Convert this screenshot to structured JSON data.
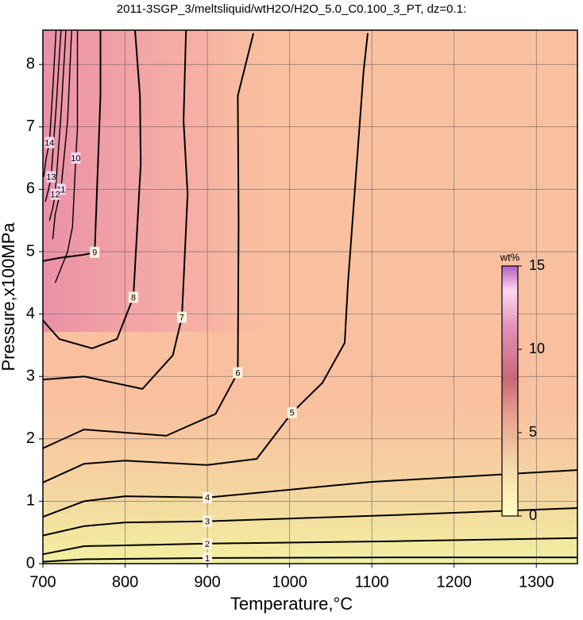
{
  "chart_data": {
    "type": "contour",
    "title": "2011-3SGP_3/meltsliquid/wtH2O/H2O_5.0_C0.100_3_PT, dz=0.1:",
    "x_label": "Temperature,°C",
    "y_label": "Pressure,x100MPa",
    "xlim": [
      700,
      1350
    ],
    "ylim": [
      0,
      8.55
    ],
    "xticks": [
      700,
      800,
      900,
      1000,
      1100,
      1200,
      1300
    ],
    "yticks": [
      0,
      1,
      2,
      3,
      4,
      5,
      6,
      7,
      8
    ],
    "grid": true,
    "line_color": "#000000",
    "series": [
      {
        "name": "1",
        "x": [
          700,
          750,
          900,
          1130,
          1350
        ],
        "values": [
          0.03,
          0.07,
          0.09,
          0.1,
          0.1
        ]
      },
      {
        "name": "2",
        "x": [
          700,
          750,
          900,
          1130,
          1350
        ],
        "values": [
          0.15,
          0.28,
          0.32,
          0.36,
          0.41
        ]
      },
      {
        "name": "3",
        "x": [
          700,
          750,
          800,
          900,
          1130,
          1350
        ],
        "values": [
          0.45,
          0.6,
          0.66,
          0.68,
          0.78,
          0.89
        ]
      },
      {
        "name": "4",
        "x": [
          700,
          750,
          800,
          900,
          1100,
          1350
        ],
        "values": [
          0.75,
          1.0,
          1.08,
          1.06,
          1.31,
          1.5
        ]
      },
      {
        "name": "5",
        "x": [
          700,
          750,
          800,
          900,
          960,
          1003,
          1040,
          1067,
          1071,
          1090,
          1095
        ],
        "values": [
          1.3,
          1.6,
          1.65,
          1.58,
          1.68,
          2.42,
          2.9,
          3.54,
          4.5,
          7.9,
          8.5
        ]
      },
      {
        "name": "6",
        "x": [
          700,
          750,
          850,
          910,
          937,
          938,
          937,
          956
        ],
        "values": [
          1.85,
          2.15,
          2.05,
          2.4,
          3.06,
          5.48,
          7.5,
          8.5
        ]
      },
      {
        "name": "7",
        "x": [
          700,
          750,
          821,
          858,
          869,
          876,
          871,
          874
        ],
        "values": [
          2.95,
          3.0,
          2.8,
          3.34,
          3.95,
          5.92,
          7.1,
          8.55
        ]
      },
      {
        "name": "8",
        "x": [
          700,
          720,
          760,
          790,
          810,
          819,
          818,
          812
        ],
        "values": [
          3.9,
          3.6,
          3.45,
          3.6,
          4.27,
          6.4,
          7.5,
          8.55
        ]
      },
      {
        "name": "9",
        "x": [
          700,
          720,
          750,
          763,
          768,
          770,
          770
        ],
        "values": [
          4.85,
          4.9,
          4.95,
          4.99,
          6.78,
          7.5,
          8.55
        ]
      },
      {
        "name": "10",
        "x": [
          715,
          730,
          736,
          740,
          742,
          742
        ],
        "values": [
          4.5,
          5.0,
          5.4,
          6.5,
          6.97,
          8.55
        ]
      },
      {
        "name": "11",
        "x": [
          712,
          715,
          722,
          730,
          735
        ],
        "values": [
          5.2,
          5.6,
          6.0,
          7.1,
          8.55
        ]
      },
      {
        "name": "12",
        "x": [
          708,
          712,
          715,
          722,
          728
        ],
        "values": [
          5.5,
          5.7,
          5.92,
          7.2,
          8.55
        ]
      },
      {
        "name": "13",
        "x": [
          703,
          707,
          710,
          716,
          722
        ],
        "values": [
          5.8,
          6.0,
          6.2,
          7.3,
          8.55
        ]
      },
      {
        "name": "14",
        "x": [
          701,
          704,
          708,
          712,
          716
        ],
        "values": [
          6.2,
          6.5,
          6.75,
          7.6,
          8.55
        ]
      }
    ],
    "colorbar": {
      "label": "wt%",
      "lim": [
        0,
        15
      ],
      "ticks": [
        0,
        5,
        10,
        15
      ]
    }
  }
}
